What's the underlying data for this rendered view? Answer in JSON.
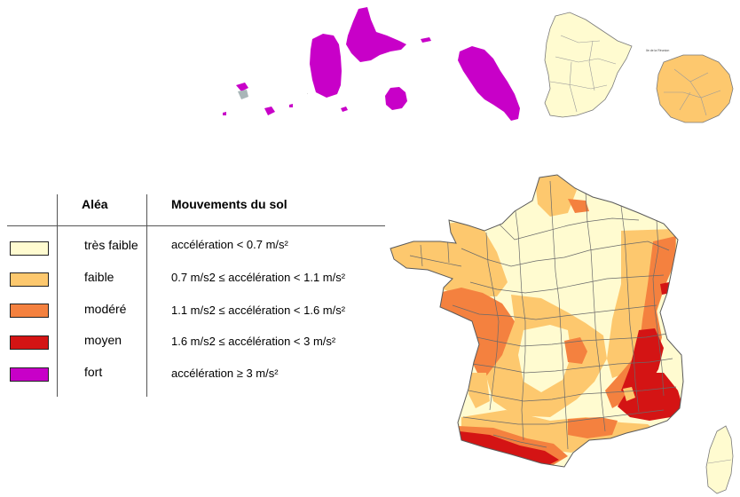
{
  "colors": {
    "tres_faible": "#fffbd0",
    "faible": "#fdc86e",
    "modere": "#f4813f",
    "moyen": "#d41414",
    "fort": "#c800c8",
    "border": "#6a6a6a",
    "grey_island": "#a9b6b8"
  },
  "legend": {
    "header_alea": "Aléa",
    "header_mouvements": "Mouvements du sol",
    "rows": [
      {
        "alea": "très faible",
        "mouvement": "accélération < 0.7 m/s²"
      },
      {
        "alea": "faible",
        "mouvement": "0.7 m/s2 ≤ accélération  < 1.1 m/s²"
      },
      {
        "alea": "modéré",
        "mouvement": "1.1 m/s2 ≤ accélération < 1.6 m/s²"
      },
      {
        "alea": "moyen",
        "mouvement": "1.6 m/s2 ≤ accélération < 3 m/s²"
      },
      {
        "alea": "fort",
        "mouvement": "accélération  ≥ 3 m/s²"
      }
    ]
  },
  "territories": {
    "reunion_label": "Ile de la Réunion"
  }
}
